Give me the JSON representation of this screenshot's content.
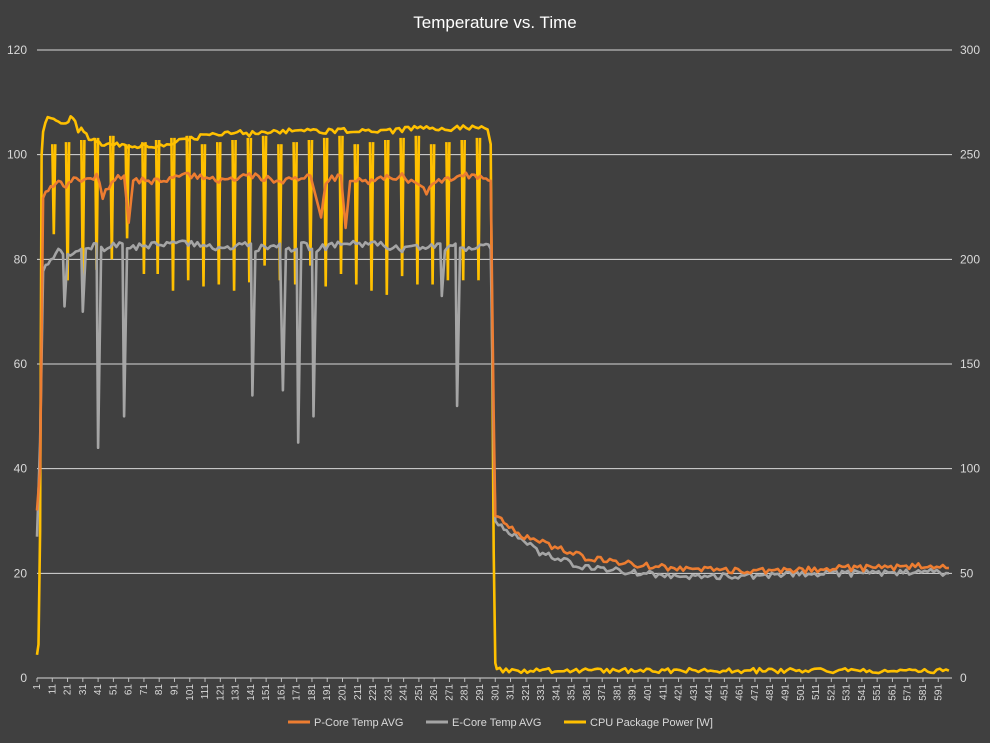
{
  "chart_data": {
    "type": "line",
    "title": "Temperature vs. Time",
    "xlabel": "",
    "ylabel": "",
    "y_left": {
      "min": 0,
      "max": 120,
      "ticks": [
        0,
        20,
        40,
        60,
        80,
        100,
        120
      ]
    },
    "y_right": {
      "min": 0,
      "max": 300,
      "ticks": [
        0,
        50,
        100,
        150,
        200,
        250,
        300
      ]
    },
    "x_range": [
      1,
      600
    ],
    "x_tick_start": 1,
    "x_tick_step": 10,
    "x_tick_end": 591,
    "grid": "horizontal",
    "legend_position": "bottom",
    "legend_markers": [
      "p-core-marker",
      "e-core-marker",
      "power-marker"
    ],
    "series": [
      {
        "name": "P-Core Temp AVG",
        "axis": "left",
        "color": "#ed7d31",
        "points": [
          [
            1,
            32
          ],
          [
            3,
            40
          ],
          [
            5,
            92
          ],
          [
            10,
            94
          ],
          [
            15,
            95
          ],
          [
            20,
            94
          ],
          [
            25,
            96
          ],
          [
            30,
            95
          ],
          [
            40,
            96
          ],
          [
            44,
            92
          ],
          [
            50,
            95
          ],
          [
            58,
            96
          ],
          [
            61,
            87
          ],
          [
            64,
            95
          ],
          [
            80,
            95
          ],
          [
            100,
            96
          ],
          [
            120,
            95
          ],
          [
            140,
            96
          ],
          [
            160,
            95
          ],
          [
            180,
            96
          ],
          [
            187,
            88
          ],
          [
            190,
            95
          ],
          [
            200,
            96
          ],
          [
            203,
            86
          ],
          [
            206,
            95
          ],
          [
            220,
            95
          ],
          [
            240,
            96
          ],
          [
            256,
            93
          ],
          [
            260,
            95
          ],
          [
            280,
            96
          ],
          [
            295,
            96
          ],
          [
            298,
            95
          ],
          [
            300,
            50
          ],
          [
            301,
            31
          ],
          [
            305,
            30
          ],
          [
            310,
            29
          ],
          [
            320,
            27
          ],
          [
            330,
            26
          ],
          [
            340,
            25
          ],
          [
            350,
            24
          ],
          [
            360,
            23
          ],
          [
            380,
            22
          ],
          [
            400,
            21.5
          ],
          [
            420,
            21
          ],
          [
            440,
            21
          ],
          [
            460,
            20.5
          ],
          [
            480,
            20.5
          ],
          [
            500,
            20.5
          ],
          [
            520,
            21
          ],
          [
            540,
            21
          ],
          [
            560,
            21
          ],
          [
            580,
            21.5
          ],
          [
            598,
            21
          ]
        ]
      },
      {
        "name": "E-Core Temp AVG",
        "axis": "left",
        "color": "#a5a5a5",
        "points": [
          [
            1,
            27
          ],
          [
            3,
            45
          ],
          [
            5,
            78
          ],
          [
            10,
            80
          ],
          [
            15,
            82
          ],
          [
            18,
            81
          ],
          [
            19,
            71
          ],
          [
            21,
            81
          ],
          [
            30,
            82
          ],
          [
            31,
            70
          ],
          [
            33,
            82
          ],
          [
            40,
            83
          ],
          [
            41,
            44
          ],
          [
            43,
            82
          ],
          [
            57,
            83
          ],
          [
            58,
            50
          ],
          [
            60,
            82
          ],
          [
            80,
            83
          ],
          [
            100,
            83
          ],
          [
            120,
            82
          ],
          [
            141,
            83
          ],
          [
            142,
            54
          ],
          [
            144,
            82
          ],
          [
            160,
            83
          ],
          [
            162,
            55
          ],
          [
            164,
            82
          ],
          [
            171,
            82
          ],
          [
            172,
            45
          ],
          [
            174,
            83
          ],
          [
            181,
            82
          ],
          [
            182,
            50
          ],
          [
            184,
            82
          ],
          [
            200,
            83
          ],
          [
            220,
            83
          ],
          [
            240,
            82
          ],
          [
            265,
            83
          ],
          [
            266,
            73
          ],
          [
            268,
            82
          ],
          [
            275,
            83
          ],
          [
            276,
            52
          ],
          [
            278,
            82
          ],
          [
            295,
            83
          ],
          [
            298,
            82
          ],
          [
            300,
            45
          ],
          [
            301,
            30
          ],
          [
            305,
            29
          ],
          [
            310,
            28
          ],
          [
            320,
            26
          ],
          [
            330,
            24
          ],
          [
            340,
            23
          ],
          [
            350,
            22
          ],
          [
            360,
            21
          ],
          [
            380,
            20.5
          ],
          [
            400,
            20
          ],
          [
            420,
            19.5
          ],
          [
            440,
            19.5
          ],
          [
            460,
            19.5
          ],
          [
            480,
            19.5
          ],
          [
            500,
            20
          ],
          [
            520,
            20
          ],
          [
            540,
            20
          ],
          [
            560,
            20
          ],
          [
            580,
            20.5
          ],
          [
            598,
            20
          ]
        ]
      },
      {
        "name": "CPU Package Power [W]",
        "axis": "right",
        "color": "#ffc000",
        "points": [
          [
            1,
            11
          ],
          [
            2,
            16
          ],
          [
            3,
            70
          ],
          [
            4,
            250
          ],
          [
            5,
            262
          ],
          [
            8,
            267
          ],
          [
            12,
            266
          ],
          [
            15,
            265
          ],
          [
            20,
            265
          ],
          [
            23,
            268
          ],
          [
            26,
            266
          ],
          [
            28,
            260
          ],
          [
            30,
            262
          ],
          [
            35,
            258
          ],
          [
            40,
            256
          ],
          [
            45,
            255
          ],
          [
            50,
            254
          ],
          [
            55,
            255
          ],
          [
            60,
            253
          ],
          [
            65,
            254
          ],
          [
            70,
            255
          ],
          [
            80,
            254
          ],
          [
            90,
            256
          ],
          [
            100,
            257
          ],
          [
            110,
            259
          ],
          [
            120,
            260
          ],
          [
            130,
            261
          ],
          [
            140,
            260
          ],
          [
            150,
            260
          ],
          [
            160,
            261
          ],
          [
            170,
            262
          ],
          [
            180,
            261
          ],
          [
            190,
            261
          ],
          [
            200,
            262
          ],
          [
            210,
            261
          ],
          [
            220,
            262
          ],
          [
            230,
            261
          ],
          [
            240,
            262
          ],
          [
            250,
            263
          ],
          [
            260,
            262
          ],
          [
            270,
            262
          ],
          [
            280,
            263
          ],
          [
            290,
            263
          ],
          [
            296,
            262
          ],
          [
            298,
            255
          ],
          [
            300,
            60
          ],
          [
            301,
            6
          ],
          [
            302,
            4
          ],
          [
            310,
            3.5
          ],
          [
            350,
            3.5
          ],
          [
            400,
            3.5
          ],
          [
            450,
            3.5
          ],
          [
            500,
            3.5
          ],
          [
            550,
            3.5
          ],
          [
            598,
            3.5
          ]
        ],
        "dips": [
          12,
          21,
          31,
          40,
          50,
          60,
          71,
          80,
          90,
          100,
          110,
          120,
          130,
          140,
          150,
          160,
          170,
          180,
          190,
          200,
          210,
          220,
          230,
          240,
          250,
          260,
          270,
          280,
          290
        ],
        "dip_bottoms": [
          212,
          190,
          190,
          195,
          200,
          210,
          193,
          193,
          185,
          190,
          187,
          188,
          185,
          189,
          197,
          190,
          188,
          197,
          187,
          193,
          188,
          185,
          183,
          192,
          188,
          188,
          190,
          190,
          190
        ]
      }
    ]
  }
}
